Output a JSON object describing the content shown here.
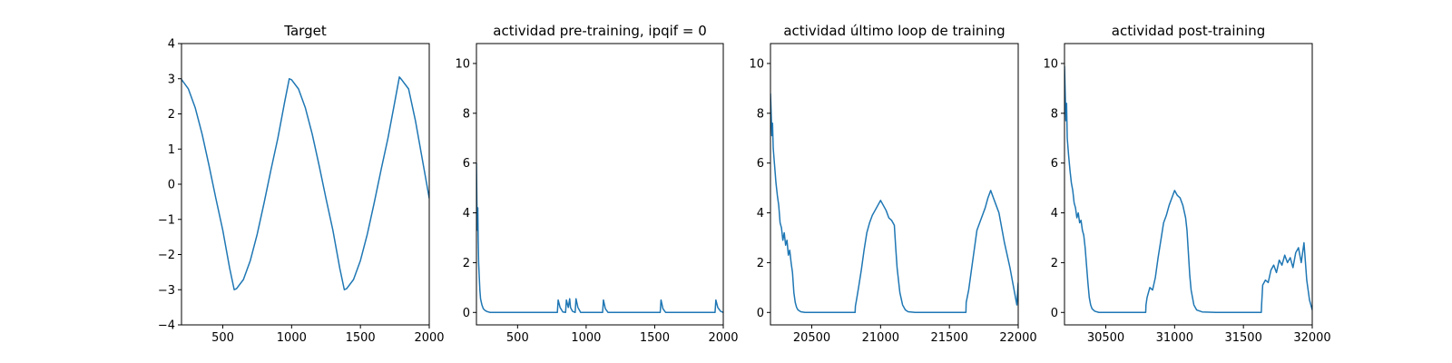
{
  "chart_data": [
    {
      "type": "line",
      "title": "Target",
      "xlabel": "",
      "ylabel": "",
      "xlim": [
        200,
        2000
      ],
      "ylim": [
        -4,
        4
      ],
      "xticks": [
        500,
        1000,
        1500,
        2000
      ],
      "yticks": [
        -4,
        -3,
        -2,
        -1,
        0,
        1,
        2,
        3,
        4
      ],
      "grid": false,
      "color": "#1f77b4",
      "series": [
        {
          "x": [
            200,
            250,
            300,
            350,
            400,
            450,
            500,
            550,
            583,
            600,
            650,
            700,
            750,
            800,
            850,
            900,
            950,
            983,
            1000,
            1050,
            1100,
            1150,
            1200,
            1250,
            1300,
            1350,
            1383,
            1400,
            1450,
            1500,
            1550,
            1600,
            1650,
            1700,
            1750,
            1783,
            1800,
            1850,
            1900,
            1950,
            2000
          ],
          "y": [
            2.98,
            2.71,
            2.17,
            1.42,
            0.53,
            -0.41,
            -1.31,
            -2.39,
            -3.0,
            -2.97,
            -2.71,
            -2.17,
            -1.42,
            -0.53,
            0.41,
            1.31,
            2.35,
            3.0,
            2.97,
            2.71,
            2.17,
            1.42,
            0.53,
            -0.41,
            -1.31,
            -2.39,
            -3.0,
            -2.97,
            -2.71,
            -2.17,
            -1.42,
            -0.53,
            0.41,
            1.31,
            2.35,
            3.05,
            2.97,
            2.71,
            1.8,
            0.7,
            -0.4
          ]
        }
      ]
    },
    {
      "type": "line",
      "title": "actividad pre-training, ipqif = 0",
      "xlabel": "",
      "ylabel": "",
      "xlim": [
        200,
        2000
      ],
      "ylim": [
        -0.5,
        10.8
      ],
      "xticks": [
        500,
        1000,
        1500,
        2000
      ],
      "yticks": [
        0,
        2,
        4,
        6,
        8,
        10
      ],
      "grid": false,
      "color": "#1f77b4",
      "series": [
        {
          "x": [
            200,
            203,
            206,
            210,
            213,
            216,
            220,
            225,
            230,
            240,
            250,
            265,
            280,
            300,
            790,
            796,
            810,
            830,
            850,
            856,
            870,
            880,
            886,
            900,
            920,
            926,
            940,
            960,
            1120,
            1126,
            1140,
            1160,
            1540,
            1546,
            1560,
            1580,
            1940,
            1946,
            1960,
            1980,
            2000
          ],
          "y": [
            6.0,
            4.5,
            3.3,
            4.2,
            2.9,
            2.0,
            1.5,
            0.9,
            0.55,
            0.3,
            0.15,
            0.07,
            0.03,
            0.0,
            0.0,
            0.5,
            0.2,
            0.02,
            0.0,
            0.5,
            0.2,
            0.55,
            0.2,
            0.05,
            0.0,
            0.55,
            0.2,
            0.0,
            0.0,
            0.5,
            0.15,
            0.0,
            0.0,
            0.5,
            0.15,
            0.0,
            0.0,
            0.5,
            0.2,
            0.05,
            0.0
          ]
        }
      ]
    },
    {
      "type": "line",
      "title": "actividad último loop de training",
      "xlabel": "",
      "ylabel": "",
      "xlim": [
        20200,
        22000
      ],
      "ylim": [
        -0.5,
        10.8
      ],
      "xticks": [
        20500,
        21000,
        21500,
        22000
      ],
      "yticks": [
        0,
        2,
        4,
        6,
        8,
        10
      ],
      "grid": false,
      "color": "#1f77b4",
      "series": [
        {
          "x": [
            20200,
            20205,
            20210,
            20215,
            20220,
            20230,
            20240,
            20250,
            20260,
            20270,
            20280,
            20290,
            20300,
            20310,
            20320,
            20330,
            20340,
            20350,
            20360,
            20370,
            20380,
            20390,
            20400,
            20420,
            20450,
            20500,
            20600,
            20700,
            20815,
            20817,
            20825,
            20840,
            20860,
            20880,
            20900,
            20920,
            20940,
            20960,
            20980,
            21000,
            21020,
            21040,
            21060,
            21080,
            21100,
            21110,
            21120,
            21140,
            21160,
            21180,
            21200,
            21250,
            21300,
            21400,
            21500,
            21620,
            21622,
            21640,
            21660,
            21680,
            21700,
            21720,
            21740,
            21760,
            21780,
            21800,
            21820,
            21840,
            21860,
            21880,
            21900,
            21920,
            21940,
            21960,
            21980,
            21990,
            22000
          ],
          "y": [
            8.8,
            8.0,
            7.1,
            7.6,
            6.6,
            5.9,
            5.2,
            4.7,
            4.3,
            3.6,
            3.4,
            2.9,
            3.2,
            2.7,
            2.9,
            2.3,
            2.5,
            2.0,
            1.6,
            0.8,
            0.4,
            0.2,
            0.1,
            0.03,
            0.0,
            0.0,
            0.0,
            0.0,
            0.0,
            0.25,
            0.5,
            1.0,
            1.7,
            2.5,
            3.2,
            3.6,
            3.9,
            4.1,
            4.3,
            4.5,
            4.3,
            4.1,
            3.8,
            3.7,
            3.5,
            2.6,
            1.8,
            0.8,
            0.3,
            0.1,
            0.03,
            0.0,
            0.0,
            0.0,
            0.0,
            0.0,
            0.4,
            0.9,
            1.7,
            2.5,
            3.3,
            3.6,
            3.9,
            4.2,
            4.6,
            4.9,
            4.6,
            4.3,
            4.0,
            3.4,
            2.8,
            2.3,
            1.8,
            1.2,
            0.6,
            0.3,
            1.2
          ]
        }
      ]
    },
    {
      "type": "line",
      "title": "actividad post-training",
      "xlabel": "",
      "ylabel": "",
      "xlim": [
        30200,
        32000
      ],
      "ylim": [
        -0.5,
        10.8
      ],
      "xticks": [
        30500,
        31000,
        31500,
        32000
      ],
      "yticks": [
        0,
        2,
        4,
        6,
        8,
        10
      ],
      "grid": false,
      "color": "#1f77b4",
      "series": [
        {
          "x": [
            30200,
            30205,
            30210,
            30215,
            30220,
            30230,
            30240,
            30250,
            30260,
            30270,
            30280,
            30290,
            30300,
            30310,
            30320,
            30330,
            30340,
            30350,
            30360,
            30370,
            30380,
            30390,
            30400,
            30420,
            30450,
            30500,
            30600,
            30700,
            30790,
            30792,
            30800,
            30820,
            30840,
            30860,
            30880,
            30900,
            30920,
            30940,
            30960,
            30980,
            31000,
            31020,
            31040,
            31060,
            31080,
            31090,
            31100,
            31110,
            31120,
            31140,
            31160,
            31200,
            31300,
            31400,
            31500,
            31630,
            31632,
            31640,
            31660,
            31680,
            31700,
            31720,
            31740,
            31760,
            31780,
            31800,
            31820,
            31840,
            31860,
            31880,
            31900,
            31920,
            31940,
            31960,
            31980,
            32000
          ],
          "y": [
            9.9,
            8.8,
            7.7,
            8.4,
            7.0,
            6.3,
            5.7,
            5.2,
            4.9,
            4.4,
            4.2,
            3.8,
            4.0,
            3.6,
            3.7,
            3.3,
            3.1,
            2.6,
            1.9,
            1.2,
            0.6,
            0.3,
            0.15,
            0.05,
            0.0,
            0.0,
            0.0,
            0.0,
            0.0,
            0.3,
            0.6,
            1.0,
            0.9,
            1.4,
            2.2,
            2.9,
            3.6,
            3.9,
            4.3,
            4.6,
            4.9,
            4.7,
            4.6,
            4.3,
            3.8,
            3.3,
            2.4,
            1.5,
            0.9,
            0.3,
            0.1,
            0.02,
            0.0,
            0.0,
            0.0,
            0.0,
            0.3,
            1.1,
            1.3,
            1.2,
            1.7,
            1.9,
            1.6,
            2.1,
            1.9,
            2.3,
            2.0,
            2.2,
            1.8,
            2.4,
            2.6,
            2.0,
            2.8,
            1.3,
            0.5,
            0.1
          ]
        }
      ]
    }
  ]
}
